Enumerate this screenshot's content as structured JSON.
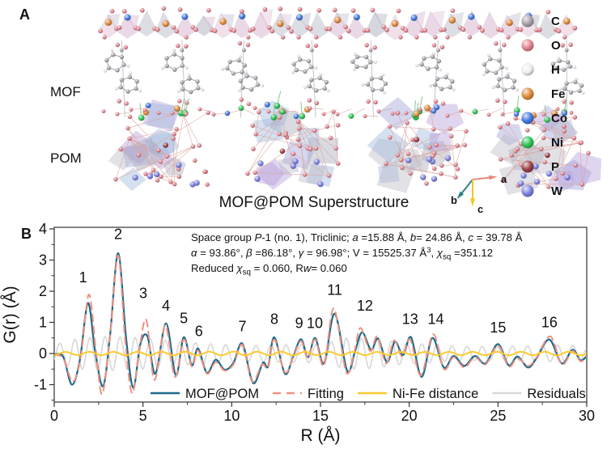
{
  "figure": {
    "panel_a": {
      "label": "A",
      "region_labels": {
        "mof": "MOF",
        "pom": "POM"
      },
      "caption": "MOF@POM Superstructure",
      "axis_triad": {
        "a": "a",
        "b": "b",
        "c": "c",
        "a_color": "#e8897c",
        "b_color": "#2f7f8e",
        "c_color": "#f3c51d"
      },
      "atom_legend": [
        {
          "symbol": "C",
          "color": "#a8a2aa"
        },
        {
          "symbol": "O",
          "color": "#e2838d"
        },
        {
          "symbol": "H",
          "color": "#efefef"
        },
        {
          "symbol": "Fe",
          "color": "#e08a3a"
        },
        {
          "symbol": "Co",
          "color": "#4379e0"
        },
        {
          "symbol": "Ni",
          "color": "#2ec455"
        },
        {
          "symbol": "P",
          "color": "#9b4048"
        },
        {
          "symbol": "W",
          "color": "#7d82e0"
        }
      ],
      "structure_palette": {
        "mof_polyhedra": [
          "#dcb9d2",
          "#c2c2cf",
          "#e6c6da",
          "#b5b5c4"
        ],
        "pom_polyhedra": [
          "#9e9edb",
          "#b49cdb",
          "#a9a9b8",
          "#9db7de",
          "#b9b9c6"
        ],
        "bond": "#dba49a",
        "organic_bond": "#a6a6ae",
        "ni_bond": "#86c98f"
      }
    },
    "panel_b": {
      "label": "B",
      "params_lines": [
        [
          {
            "t": "Space group "
          },
          {
            "t": "P",
            "i": true
          },
          {
            "t": "-1 (no. 1), Triclinic; "
          },
          {
            "t": "a",
            "i": true
          },
          {
            "t": " =15.88 Å, "
          },
          {
            "t": "b",
            "i": true
          },
          {
            "t": "= 24.86 Å, "
          },
          {
            "t": "c",
            "i": true
          },
          {
            "t": " = 39.78 Å"
          }
        ],
        [
          {
            "t": "α",
            "i": true
          },
          {
            "t": " = 93.86°, "
          },
          {
            "t": "β",
            "i": true
          },
          {
            "t": " =86.18°, "
          },
          {
            "t": "γ",
            "i": true
          },
          {
            "t": " = 96.98°; V = 15525.37 Å"
          },
          {
            "t": "3",
            "sup": true
          },
          {
            "t": ", "
          },
          {
            "t": "χ",
            "i": true
          },
          {
            "t": "sq",
            "sub": true
          },
          {
            "t": " =351.12"
          }
        ],
        [
          {
            "t": "Reduced "
          },
          {
            "t": "χ",
            "i": true
          },
          {
            "t": "sq",
            "sub": true
          },
          {
            "t": " = 0.060, R"
          },
          {
            "t": "w",
            "i": true
          },
          {
            "t": "= 0.060"
          }
        ]
      ]
    }
  },
  "chart_data": {
    "type": "line",
    "title": "",
    "xlabel": "R (Å)",
    "ylabel": "G(r) (Å)",
    "xlim": [
      0,
      30
    ],
    "ylim": [
      -1.53,
      4.05
    ],
    "x_ticks": [
      0,
      5,
      10,
      15,
      20,
      25,
      30
    ],
    "y_ticks": [
      -1,
      0,
      1,
      2,
      3,
      4
    ],
    "x_minor_step": 2.5,
    "y_minor_step": 0.5,
    "grid": false,
    "legend_position": "bottom-inside",
    "series": [
      {
        "name": "Residuals",
        "color": "#d9d9d9",
        "style": "solid",
        "width": 1.7,
        "oscillation": {
          "period": 0.85,
          "phase": 0.1,
          "amplitude_envelope": [
            [
              0,
              0.28
            ],
            [
              1.5,
              0.5
            ],
            [
              3,
              0.55
            ],
            [
              5,
              0.5
            ],
            [
              7,
              0.38
            ],
            [
              9,
              0.3
            ],
            [
              11,
              0.25
            ],
            [
              13,
              0.28
            ],
            [
              15,
              0.3
            ],
            [
              16.5,
              0.5
            ],
            [
              18,
              0.48
            ],
            [
              19.5,
              0.35
            ],
            [
              21,
              0.3
            ],
            [
              23,
              0.22
            ],
            [
              25,
              0.22
            ],
            [
              27,
              0.25
            ],
            [
              29,
              0.28
            ],
            [
              30,
              0.2
            ]
          ]
        }
      },
      {
        "name": "MOF@POM",
        "color": "#1b6a8a",
        "style": "solid",
        "width": 2.2,
        "points": [
          [
            0,
            -0.03
          ],
          [
            0.5,
            -0.1
          ],
          [
            1.0,
            -1.0
          ],
          [
            1.45,
            -0.2
          ],
          [
            1.9,
            1.62
          ],
          [
            2.3,
            0.1
          ],
          [
            2.75,
            -1.05
          ],
          [
            3.15,
            0.6
          ],
          [
            3.6,
            3.22
          ],
          [
            4.05,
            0.5
          ],
          [
            4.45,
            -1.1
          ],
          [
            4.85,
            0.3
          ],
          [
            5.25,
            0.55
          ],
          [
            5.7,
            -0.65
          ],
          [
            6.3,
            0.97
          ],
          [
            6.85,
            -0.7
          ],
          [
            7.3,
            0.52
          ],
          [
            7.75,
            -0.38
          ],
          [
            8.1,
            0.16
          ],
          [
            8.6,
            -0.62
          ],
          [
            9.1,
            -0.2
          ],
          [
            9.6,
            -0.52
          ],
          [
            10.1,
            -0.3
          ],
          [
            10.6,
            0.32
          ],
          [
            11.2,
            -0.95
          ],
          [
            11.75,
            -0.3
          ],
          [
            12.05,
            -0.42
          ],
          [
            12.4,
            0.52
          ],
          [
            13.0,
            -0.65
          ],
          [
            13.45,
            -0.12
          ],
          [
            13.9,
            0.46
          ],
          [
            14.3,
            -0.12
          ],
          [
            14.7,
            0.5
          ],
          [
            15.2,
            -0.32
          ],
          [
            15.8,
            1.28
          ],
          [
            16.5,
            -0.55
          ],
          [
            16.95,
            0.08
          ],
          [
            17.35,
            0.68
          ],
          [
            17.85,
            0.12
          ],
          [
            18.25,
            0.48
          ],
          [
            18.75,
            -0.28
          ],
          [
            19.2,
            0.38
          ],
          [
            19.65,
            -0.05
          ],
          [
            20.1,
            0.52
          ],
          [
            20.7,
            -0.75
          ],
          [
            21.3,
            0.5
          ],
          [
            21.95,
            -0.45
          ],
          [
            22.5,
            -0.08
          ],
          [
            23.1,
            -0.4
          ],
          [
            23.7,
            -0.08
          ],
          [
            24.3,
            -0.32
          ],
          [
            25.0,
            0.3
          ],
          [
            25.6,
            -0.38
          ],
          [
            26.1,
            -0.1
          ],
          [
            26.7,
            -0.45
          ],
          [
            27.2,
            -0.12
          ],
          [
            27.9,
            0.45
          ],
          [
            28.6,
            -0.32
          ],
          [
            29.2,
            0.12
          ],
          [
            29.65,
            -0.22
          ],
          [
            30,
            -0.08
          ]
        ]
      },
      {
        "name": "Fitting",
        "color": "#ef9181",
        "style": "dashed",
        "width": 2,
        "points": [
          [
            0,
            -0.05
          ],
          [
            0.5,
            -0.15
          ],
          [
            1.05,
            -0.9
          ],
          [
            1.5,
            -0.1
          ],
          [
            1.95,
            1.9
          ],
          [
            2.35,
            0.1
          ],
          [
            2.7,
            -1.3
          ],
          [
            3.15,
            0.55
          ],
          [
            3.6,
            3.15
          ],
          [
            4.0,
            0.4
          ],
          [
            4.4,
            -1.28
          ],
          [
            4.85,
            0.35
          ],
          [
            5.2,
            1.06
          ],
          [
            5.65,
            -0.85
          ],
          [
            6.25,
            0.9
          ],
          [
            6.8,
            -0.75
          ],
          [
            7.3,
            0.45
          ],
          [
            7.75,
            -0.42
          ],
          [
            8.1,
            0.1
          ],
          [
            8.6,
            -0.65
          ],
          [
            9.1,
            -0.28
          ],
          [
            9.6,
            -0.55
          ],
          [
            10.1,
            -0.35
          ],
          [
            10.6,
            0.28
          ],
          [
            11.15,
            -0.9
          ],
          [
            11.7,
            -0.35
          ],
          [
            12.05,
            -0.45
          ],
          [
            12.4,
            0.45
          ],
          [
            13.0,
            -0.6
          ],
          [
            13.45,
            -0.15
          ],
          [
            13.9,
            0.4
          ],
          [
            14.3,
            -0.15
          ],
          [
            14.7,
            0.45
          ],
          [
            15.2,
            -0.38
          ],
          [
            15.75,
            1.45
          ],
          [
            16.45,
            -0.6
          ],
          [
            16.9,
            0.05
          ],
          [
            17.25,
            0.82
          ],
          [
            17.8,
            0.08
          ],
          [
            18.2,
            0.55
          ],
          [
            18.7,
            -0.32
          ],
          [
            19.15,
            0.42
          ],
          [
            19.6,
            -0.1
          ],
          [
            20.05,
            0.45
          ],
          [
            20.65,
            -0.7
          ],
          [
            21.35,
            0.62
          ],
          [
            21.95,
            -0.5
          ],
          [
            22.5,
            -0.12
          ],
          [
            23.1,
            -0.45
          ],
          [
            23.7,
            -0.12
          ],
          [
            24.3,
            -0.35
          ],
          [
            25.0,
            0.25
          ],
          [
            25.6,
            -0.42
          ],
          [
            26.1,
            -0.15
          ],
          [
            26.7,
            -0.4
          ],
          [
            27.2,
            -0.1
          ],
          [
            27.95,
            0.55
          ],
          [
            28.6,
            -0.35
          ],
          [
            29.2,
            0.08
          ],
          [
            29.65,
            -0.25
          ],
          [
            30,
            -0.1
          ]
        ]
      },
      {
        "name": "Ni-Fe distance",
        "color": "#fcca2d",
        "style": "solid",
        "width": 2,
        "oscillation": {
          "period": 1.35,
          "phase": 0.3,
          "amplitude_envelope": [
            [
              0,
              0.05
            ],
            [
              10,
              0.06
            ],
            [
              20,
              0.05
            ],
            [
              30,
              0.06
            ]
          ]
        }
      }
    ],
    "legend_order": [
      "MOF@POM",
      "Fitting",
      "Ni-Fe distance",
      "Residuals"
    ],
    "peak_labels": [
      {
        "n": "1",
        "r": 1.9,
        "g": 2.28,
        "dx": -6
      },
      {
        "n": "2",
        "r": 3.6,
        "g": 3.68
      },
      {
        "n": "3",
        "r": 5.15,
        "g": 1.78,
        "dx": -3
      },
      {
        "n": "4",
        "r": 6.3,
        "g": 1.38
      },
      {
        "n": "5",
        "r": 7.3,
        "g": 0.98
      },
      {
        "n": "6",
        "r": 8.15,
        "g": 0.56
      },
      {
        "n": "7",
        "r": 10.6,
        "g": 0.72
      },
      {
        "n": "8",
        "r": 12.4,
        "g": 0.95
      },
      {
        "n": "9",
        "r": 13.8,
        "g": 0.82
      },
      {
        "n": "10",
        "r": 14.68,
        "g": 0.82
      },
      {
        "n": "11",
        "r": 15.8,
        "g": 1.88
      },
      {
        "n": "12",
        "r": 17.5,
        "g": 1.38
      },
      {
        "n": "13",
        "r": 20.05,
        "g": 0.95
      },
      {
        "n": "14",
        "r": 21.5,
        "g": 0.95
      },
      {
        "n": "15",
        "r": 25.0,
        "g": 0.68
      },
      {
        "n": "16",
        "r": 27.9,
        "g": 0.85
      }
    ]
  }
}
